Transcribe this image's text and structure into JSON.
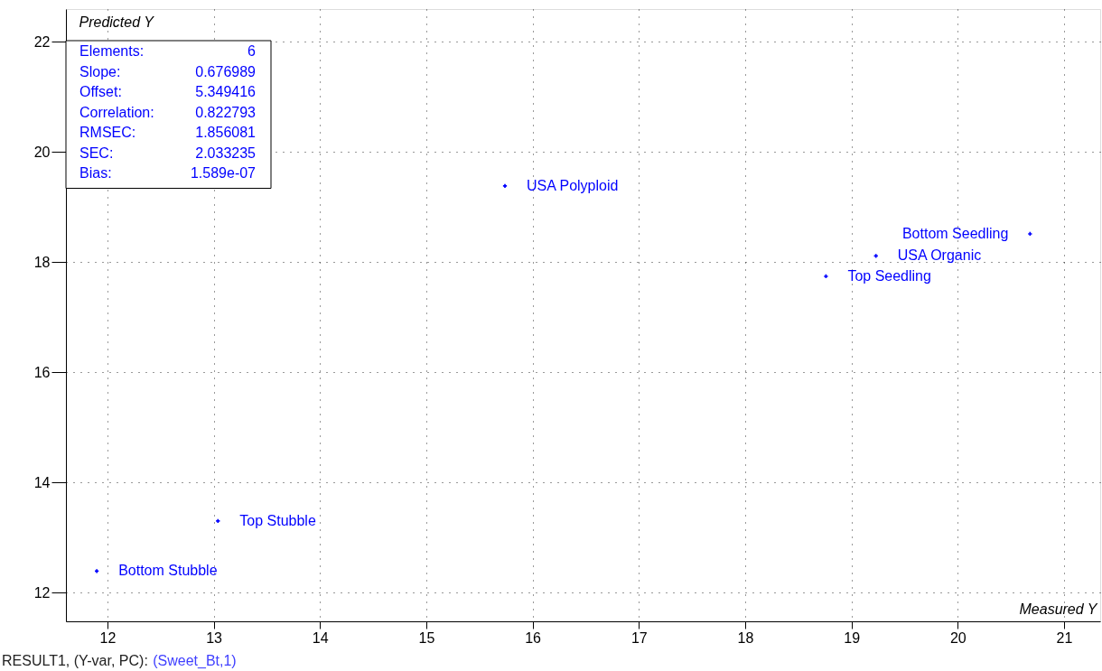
{
  "chart_data": {
    "type": "scatter",
    "xlabel": "Measured Y",
    "ylabel": "Predicted Y",
    "x": [
      11.9,
      13.04,
      15.74,
      18.76,
      19.23,
      20.68
    ],
    "values": [
      12.39,
      13.3,
      19.38,
      17.74,
      18.11,
      18.51
    ],
    "color": "#0000ff",
    "marker": "cross",
    "grid": true,
    "xlim": [
      11.61,
      21.34
    ],
    "ylim": [
      11.48,
      22.59
    ],
    "xticks": [
      12,
      13,
      14,
      15,
      16,
      17,
      18,
      19,
      20,
      21
    ],
    "yticks": [
      12,
      14,
      16,
      18,
      20,
      22
    ],
    "annotations": [
      {
        "text": "Bottom Stubble",
        "x": 11.9,
        "y": 12.39
      },
      {
        "text": "Top Stubble",
        "x": 13.04,
        "y": 13.3
      },
      {
        "text": "USA Polyploid",
        "x": 15.74,
        "y": 19.38
      },
      {
        "text": "Top Seedling",
        "x": 18.76,
        "y": 17.74
      },
      {
        "text": "USA Organic",
        "x": 19.23,
        "y": 18.11
      },
      {
        "text": "Bottom Seedling",
        "x": 20.68,
        "y": 18.51
      },
      "Elements: 6",
      "Slope: 0.676989",
      "Offset: 5.349416",
      "Correlation: 0.822793",
      "RMSEC: 1.856081",
      "SEC: 2.033235",
      "Bias: 1.589e-07",
      "RESULT1, (Y-var, PC): (Sweet_Bt,1)"
    ]
  }
}
